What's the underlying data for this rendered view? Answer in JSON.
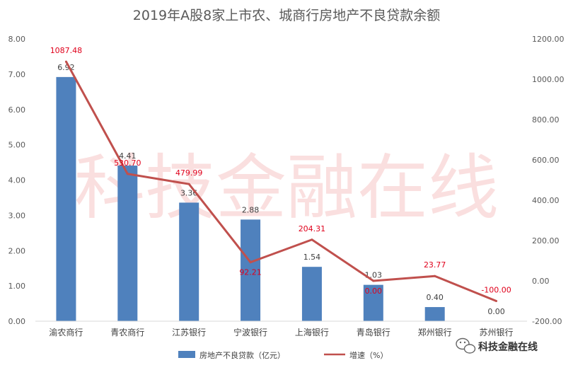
{
  "chart_data": {
    "type": "bar",
    "title": "2019年A股8家上市农、城商行房地产不良贷款余额",
    "categories": [
      "渝农商行",
      "青农商行",
      "江苏银行",
      "宁波银行",
      "上海银行",
      "青岛银行",
      "郑州银行",
      "苏州银行"
    ],
    "series": [
      {
        "name": "房地产不良贷款（亿元）",
        "type": "bar",
        "axis": "left",
        "color": "#4f81bd",
        "values": [
          6.92,
          4.41,
          3.36,
          2.88,
          1.54,
          1.03,
          0.4,
          0.0
        ],
        "labels": [
          "6.92",
          "4.41",
          "3.36",
          "2.88",
          "1.54",
          "1.03",
          "0.40",
          "0.00"
        ]
      },
      {
        "name": "增速（%）",
        "type": "line",
        "axis": "right",
        "color": "#c0504d",
        "values": [
          1087.48,
          530.7,
          479.99,
          92.21,
          204.31,
          0.0,
          23.77,
          -100.0
        ],
        "labels": [
          "1087.48",
          "530.70",
          "479.99",
          "92.21",
          "204.31",
          "0.00",
          "23.77",
          "-100.00"
        ]
      }
    ],
    "y_left": {
      "lim": [
        0,
        8
      ],
      "ticks": [
        "0.00",
        "1.00",
        "2.00",
        "3.00",
        "4.00",
        "5.00",
        "6.00",
        "7.00",
        "8.00"
      ]
    },
    "y_right": {
      "lim": [
        -200,
        1200
      ],
      "ticks": [
        "-200.00",
        "0.00",
        "200.00",
        "400.00",
        "600.00",
        "800.00",
        "1000.00",
        "1200.00"
      ]
    },
    "grid": false,
    "legend_position": "bottom"
  },
  "watermark": "科技金融在线",
  "brand": {
    "name": "科技金融在线",
    "icon": "wechat-icon"
  }
}
